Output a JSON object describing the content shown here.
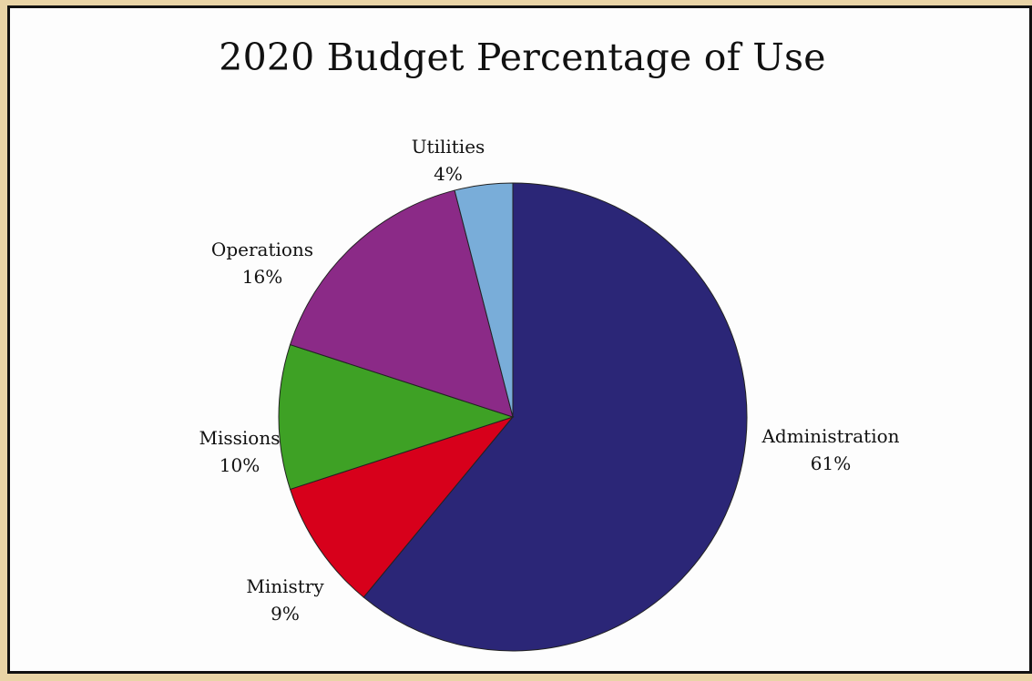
{
  "chart_data": {
    "type": "pie",
    "title": "2020 Budget Percentage of Use",
    "start_angle_deg": 0,
    "direction": "clockwise",
    "slices": [
      {
        "label": "Administration",
        "value_label": "61%",
        "value": 61,
        "color": "#2b2677"
      },
      {
        "label": "Ministry",
        "value_label": "9%",
        "value": 9,
        "color": "#d7001b"
      },
      {
        "label": "Missions",
        "value_label": "10%",
        "value": 10,
        "color": "#3ea125"
      },
      {
        "label": "Operations",
        "value_label": "16%",
        "value": 16,
        "color": "#8b2a87"
      },
      {
        "label": "Utilities",
        "value_label": "4%",
        "value": 4,
        "color": "#79add9"
      }
    ]
  }
}
